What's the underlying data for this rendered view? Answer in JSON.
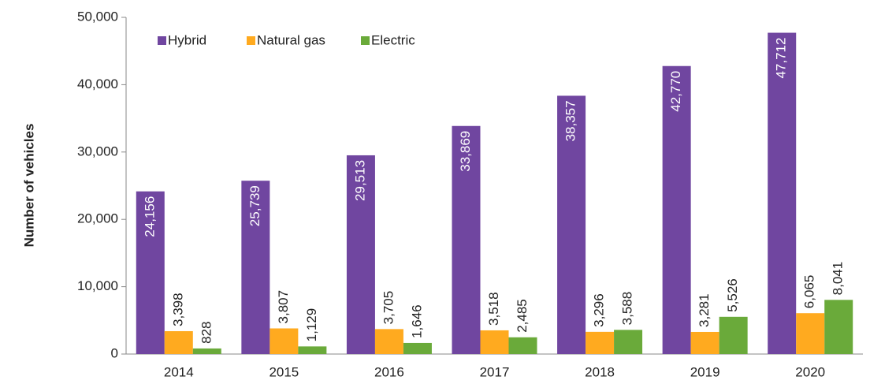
{
  "chart_data": {
    "type": "bar",
    "y_label": "Number of vehicles",
    "categories": [
      "2014",
      "2015",
      "2016",
      "2017",
      "2018",
      "2019",
      "2020"
    ],
    "series": [
      {
        "name": "Hybrid",
        "color": "#7046a0",
        "values": [
          24156,
          25739,
          29513,
          33869,
          38357,
          42770,
          47712
        ],
        "value_labels": [
          "24,156",
          "25,739",
          "29,513",
          "33,869",
          "38,357",
          "42,770",
          "47,712"
        ]
      },
      {
        "name": "Natural gas",
        "color": "#ffaa1f",
        "values": [
          3398,
          3807,
          3705,
          3518,
          3296,
          3281,
          6065
        ],
        "value_labels": [
          "3,398",
          "3,807",
          "3,705",
          "3,518",
          "3,296",
          "3,281",
          "6,065"
        ]
      },
      {
        "name": "Electric",
        "color": "#6aaa3a",
        "values": [
          828,
          1129,
          1646,
          2485,
          3588,
          5526,
          8041
        ],
        "value_labels": [
          "828",
          "1,129",
          "1,646",
          "2,485",
          "3,588",
          "5,526",
          "8,041"
        ]
      }
    ],
    "ylim": [
      0,
      50000
    ],
    "yticks": [
      0,
      {
        "value": 10000,
        "label": "10,000"
      },
      {
        "value": 20000,
        "label": "20,000"
      },
      {
        "value": 30000,
        "label": "30,000"
      },
      {
        "value": 40000,
        "label": "40,000"
      },
      {
        "value": 50000,
        "label": "50,000"
      }
    ],
    "legend": "top-left"
  }
}
